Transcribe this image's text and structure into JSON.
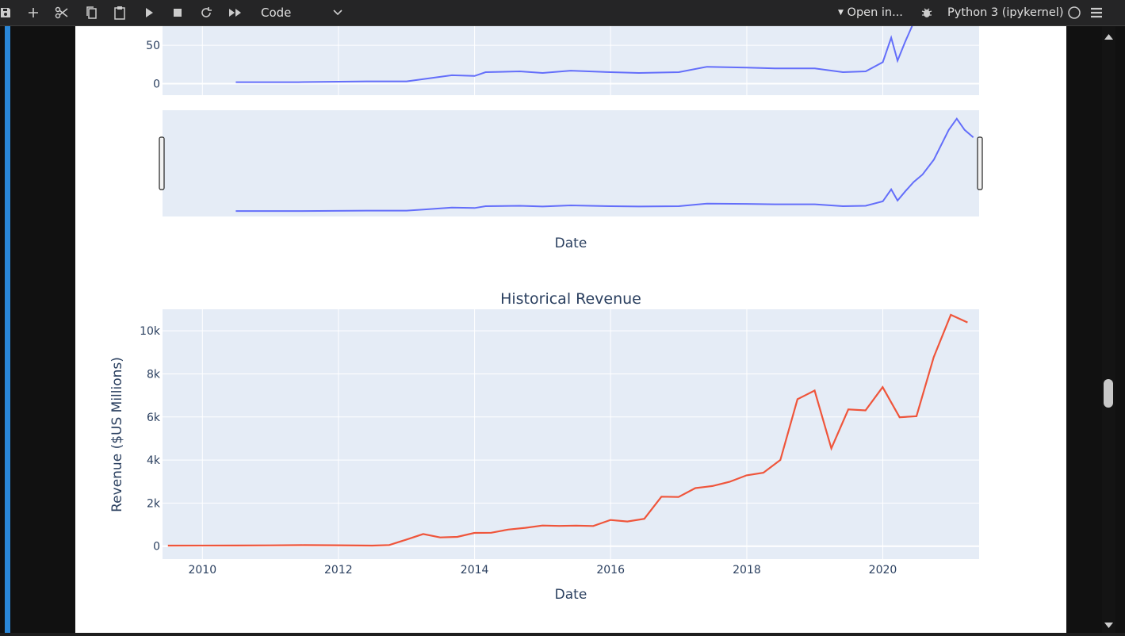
{
  "toolbar": {
    "cell_type": "Code",
    "open_in": "Open in...",
    "kernel": "Python 3 (ipykernel)",
    "icons": [
      "save-icon",
      "add-icon",
      "cut-icon",
      "copy-icon",
      "paste-icon",
      "run-icon",
      "stop-icon",
      "restart-icon",
      "run-all-icon",
      "chevron-down-icon",
      "bug-icon",
      "kernel-status-circle-icon",
      "menu-icon"
    ]
  },
  "colors": {
    "share_line": "#636efa",
    "revenue_line": "#ef553b",
    "plot_bg": "#e5ecf6",
    "accent_bar": "#2a87d8"
  },
  "upper_chart": {
    "y_ticks": [
      "50",
      "0"
    ],
    "range_slider": true,
    "xlabel": "Date"
  },
  "chart_data": [
    {
      "type": "line",
      "title": "",
      "xlabel": "Date",
      "ylabel": "",
      "ylim": [
        -15,
        75
      ],
      "x_range": [
        "2009-06-01",
        "2021-06-01"
      ],
      "y_ticks": [
        0,
        50
      ],
      "grid": true,
      "range_slider": true,
      "note": "share price series with range slider, y-axis cropped at top",
      "series": [
        {
          "name": "",
          "x": [
            "2010-06-29",
            "2011-06-01",
            "2012-06-01",
            "2013-01-01",
            "2013-04-01",
            "2013-09-01",
            "2014-01-01",
            "2014-03-01",
            "2014-09-01",
            "2015-01-01",
            "2015-06-01",
            "2016-01-01",
            "2016-06-01",
            "2017-01-01",
            "2017-06-01",
            "2018-01-01",
            "2018-06-01",
            "2019-01-01",
            "2019-06-01",
            "2019-10-01",
            "2020-01-01",
            "2020-02-15",
            "2020-03-20",
            "2020-05-01",
            "2020-06-15"
          ],
          "y": [
            2,
            2,
            3,
            3,
            6,
            11,
            10,
            15,
            16,
            14,
            17,
            15,
            14,
            15,
            22,
            21,
            20,
            20,
            15,
            16,
            28,
            60,
            30,
            55,
            80
          ]
        }
      ]
    },
    {
      "type": "line",
      "title": "Historical Revenue",
      "xlabel": "Date",
      "ylabel": "Revenue ($US Millions)",
      "ylim": [
        -600,
        11000
      ],
      "x_range": [
        "2009-06-01",
        "2021-06-01"
      ],
      "x_ticks": [
        "2010",
        "2012",
        "2014",
        "2016",
        "2018",
        "2020"
      ],
      "y_ticks": [
        "0",
        "2k",
        "4k",
        "6k",
        "8k",
        "10k"
      ],
      "grid": true,
      "series": [
        {
          "name": "",
          "x": [
            "2009-06-30",
            "2010-06-30",
            "2010-12-31",
            "2011-06-30",
            "2011-12-31",
            "2012-06-30",
            "2012-09-30",
            "2012-12-31",
            "2013-03-31",
            "2013-06-30",
            "2013-09-30",
            "2013-12-31",
            "2014-03-31",
            "2014-06-30",
            "2014-09-30",
            "2014-12-31",
            "2015-03-31",
            "2015-06-30",
            "2015-09-30",
            "2015-12-31",
            "2016-03-31",
            "2016-06-30",
            "2016-09-30",
            "2016-12-31",
            "2017-03-31",
            "2017-06-30",
            "2017-09-30",
            "2017-12-31",
            "2018-03-31",
            "2018-06-30",
            "2018-09-30",
            "2018-12-31",
            "2019-03-31",
            "2019-06-30",
            "2019-09-30",
            "2019-12-31",
            "2020-03-31",
            "2020-06-30",
            "2020-09-30",
            "2020-12-31",
            "2021-03-31"
          ],
          "y": [
            27,
            28,
            36,
            49,
            39,
            27,
            50,
            306,
            562,
            405,
            431,
            615,
            621,
            769,
            852,
            957,
            940,
            955,
            937,
            1214,
            1147,
            1270,
            2298,
            2285,
            2696,
            2790,
            2985,
            3288,
            3409,
            4002,
            6824,
            7226,
            4541,
            6350,
            6303,
            7384,
            5985,
            6036,
            8771,
            10744,
            10389
          ]
        }
      ]
    }
  ]
}
